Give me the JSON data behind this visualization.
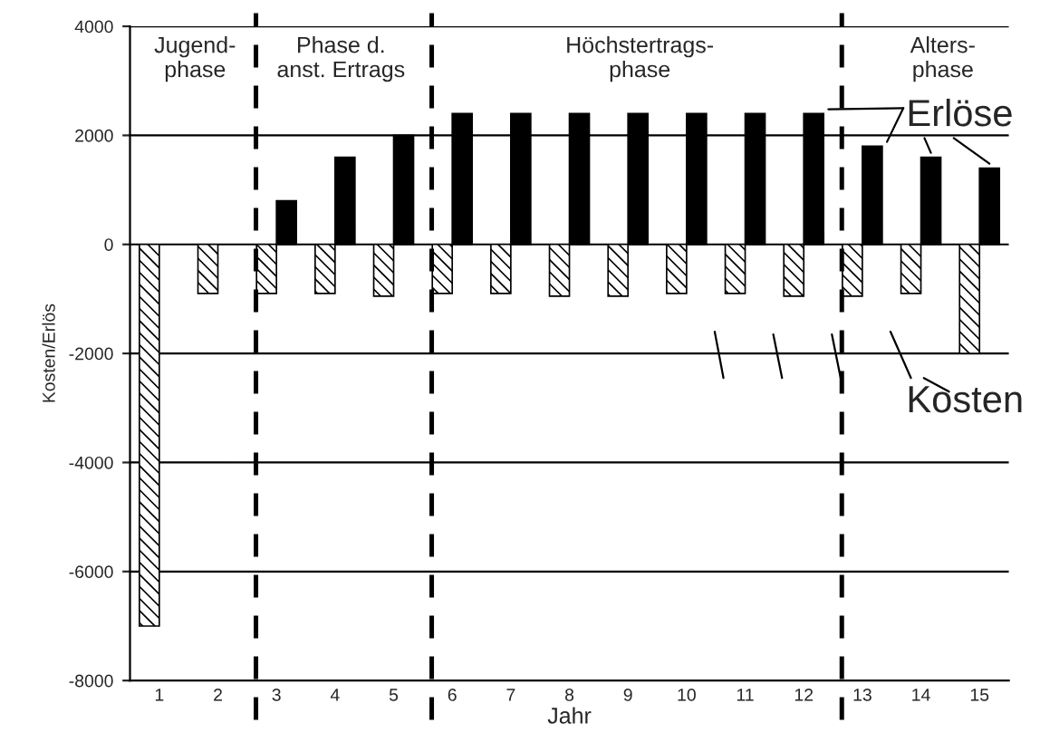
{
  "chart_data": {
    "type": "bar",
    "x": [
      1,
      2,
      3,
      4,
      5,
      6,
      7,
      8,
      9,
      10,
      11,
      12,
      13,
      14,
      15
    ],
    "series": [
      {
        "name": "Kosten",
        "color": "#000000",
        "values": [
          -7000,
          -900,
          -900,
          -900,
          -950,
          -900,
          -900,
          -950,
          -950,
          -900,
          -900,
          -950,
          -950,
          -900,
          -2000
        ]
      },
      {
        "name": "Erlöse",
        "color": "#000000",
        "values": [
          null,
          null,
          800,
          1600,
          2000,
          2400,
          2400,
          2400,
          2400,
          2400,
          2400,
          2400,
          1800,
          1600,
          1400
        ]
      }
    ],
    "xlabel": "Jahr",
    "ylabel": "Kosten/Erlös",
    "xlim": [
      0.5,
      15.5
    ],
    "xticks": [
      1,
      2,
      3,
      4,
      5,
      6,
      7,
      8,
      9,
      10,
      11,
      12,
      13,
      14,
      15
    ],
    "ylim": [
      -8000,
      4000
    ],
    "yticks": [
      -8000,
      -6000,
      -4000,
      -2000,
      0,
      2000,
      4000
    ],
    "grid": "y",
    "ref_lines": [
      {
        "axis": "x",
        "value": 2.65,
        "line_style": "dashed",
        "color": "#000000"
      },
      {
        "axis": "x",
        "value": 5.65,
        "line_style": "dashed",
        "color": "#000000"
      },
      {
        "axis": "x",
        "value": 12.65,
        "line_style": "dashed",
        "color": "#000000"
      }
    ],
    "annotations": [
      "Jugend-\nphase",
      "Phase d.\nanst. Ertrags",
      "Höchstertrags-\nphase",
      "Alters-\nphase"
    ]
  }
}
